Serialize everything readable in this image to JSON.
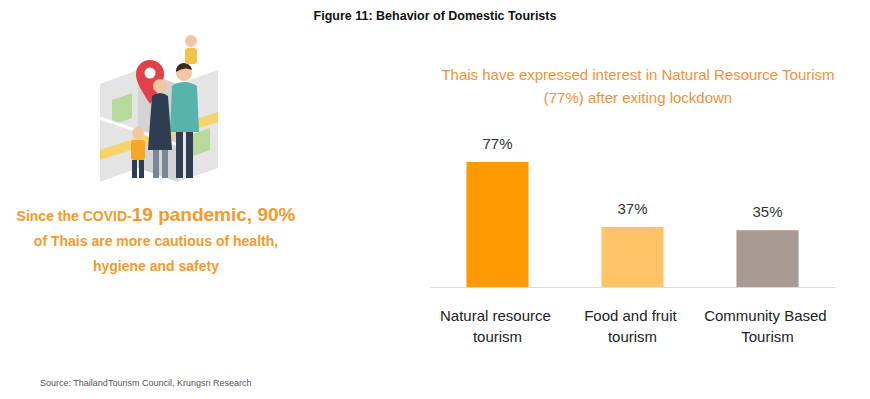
{
  "chart_data": {
    "type": "bar",
    "title": "Figure 11: Behavior of Domestic Tourists",
    "subtitle": "Thais have expressed interest in Natural Resource Tourism (77%) after exiting lockdown",
    "annotations": [
      "Since the COVID-19 pandemic, 90% of Thais are more cautious of health, hygiene and safety",
      "Source: ThailandTourism Council, Krungsri Research"
    ],
    "categories": [
      "Natural resource tourism",
      "Food and fruit tourism",
      "Community Based Tourism"
    ],
    "values": [
      77,
      37,
      35
    ],
    "value_labels": [
      "77%",
      "37%",
      "35%"
    ],
    "colors": [
      "#ff9a05",
      "#ffc467",
      "#a99a92"
    ],
    "ylim": [
      0,
      77
    ],
    "data_labels": true,
    "tick_labels": "x",
    "grid": false
  }
}
